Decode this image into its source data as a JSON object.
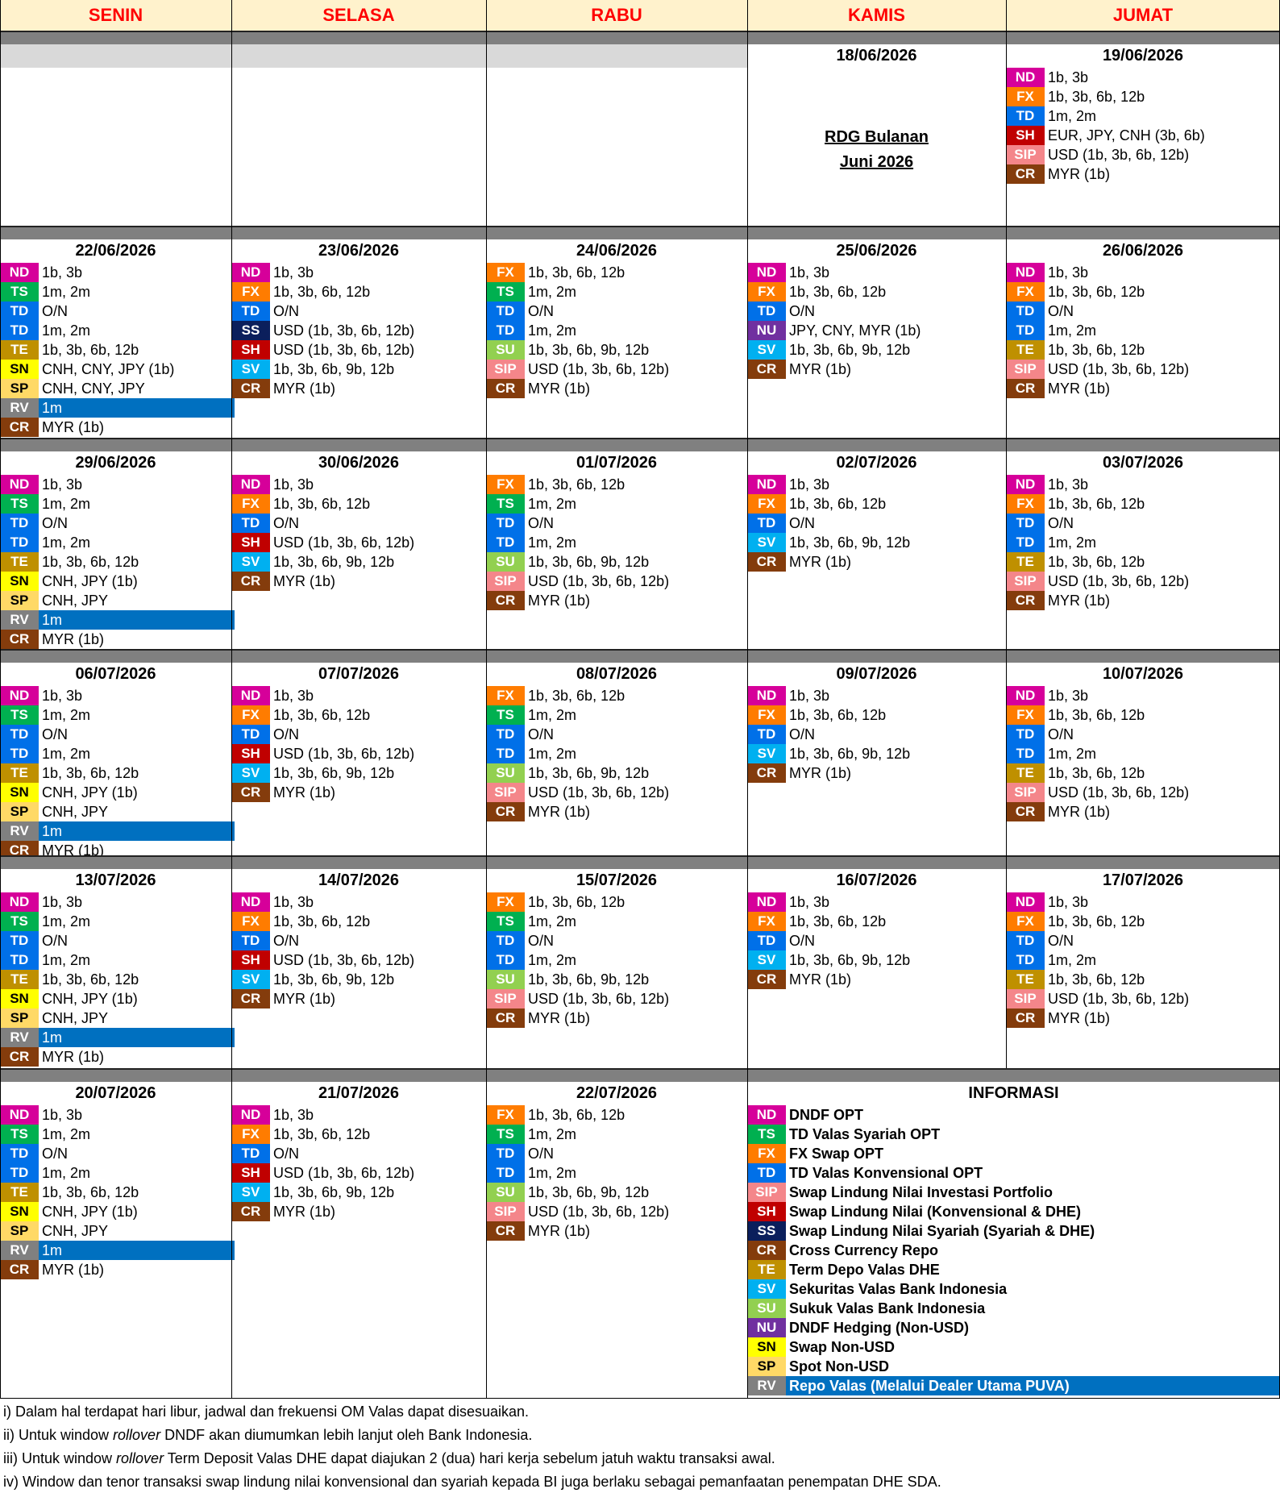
{
  "header": {
    "days": [
      "SENIN",
      "SELASA",
      "RABU",
      "KAMIS",
      "JUMAT"
    ]
  },
  "weeks": [
    {
      "cells": [
        null,
        null,
        null,
        {
          "date": "18/06/2026",
          "note": [
            "RDG Bulanan",
            "Juni 2026"
          ]
        },
        {
          "date": "19/06/2026",
          "items": [
            [
              "ND",
              "1b, 3b"
            ],
            [
              "FX",
              "1b, 3b, 6b, 12b"
            ],
            [
              "TD",
              "1m, 2m"
            ],
            [
              "SH",
              "EUR, JPY, CNH (3b, 6b)"
            ],
            [
              "SIP",
              "USD (1b, 3b, 6b, 12b)"
            ],
            [
              "CR",
              "MYR (1b)"
            ]
          ]
        }
      ]
    },
    {
      "cells": [
        {
          "date": "22/06/2026",
          "items": [
            [
              "ND",
              "1b, 3b"
            ],
            [
              "TS",
              "1m, 2m"
            ],
            [
              "TD",
              "O/N"
            ],
            [
              "TD",
              "1m, 2m"
            ],
            [
              "TE",
              "1b, 3b, 6b, 12b"
            ],
            [
              "SN",
              "CNH, CNY, JPY (1b)"
            ],
            [
              "SP",
              "CNH, CNY, JPY"
            ],
            [
              "RV",
              "1m"
            ],
            [
              "CR",
              "MYR (1b)"
            ]
          ]
        },
        {
          "date": "23/06/2026",
          "items": [
            [
              "ND",
              "1b, 3b"
            ],
            [
              "FX",
              "1b, 3b, 6b, 12b"
            ],
            [
              "TD",
              "O/N"
            ],
            [
              "SS",
              "USD (1b, 3b, 6b, 12b)"
            ],
            [
              "SH",
              "USD (1b, 3b, 6b, 12b)"
            ],
            [
              "SV",
              "1b, 3b, 6b, 9b, 12b"
            ],
            [
              "CR",
              "MYR (1b)"
            ]
          ]
        },
        {
          "date": "24/06/2026",
          "items": [
            [
              "FX",
              "1b, 3b, 6b, 12b"
            ],
            [
              "TS",
              "1m, 2m"
            ],
            [
              "TD",
              "O/N"
            ],
            [
              "TD",
              "1m, 2m"
            ],
            [
              "SU",
              "1b, 3b, 6b, 9b, 12b"
            ],
            [
              "SIP",
              "USD (1b, 3b, 6b, 12b)"
            ],
            [
              "CR",
              "MYR (1b)"
            ]
          ]
        },
        {
          "date": "25/06/2026",
          "items": [
            [
              "ND",
              "1b, 3b"
            ],
            [
              "FX",
              "1b, 3b, 6b, 12b"
            ],
            [
              "TD",
              "O/N"
            ],
            [
              "NU",
              "JPY, CNY, MYR (1b)"
            ],
            [
              "SV",
              "1b, 3b, 6b, 9b, 12b"
            ],
            [
              "CR",
              "MYR (1b)"
            ]
          ]
        },
        {
          "date": "26/06/2026",
          "items": [
            [
              "ND",
              "1b, 3b"
            ],
            [
              "FX",
              "1b, 3b, 6b, 12b"
            ],
            [
              "TD",
              "O/N"
            ],
            [
              "TD",
              "1m, 2m"
            ],
            [
              "TE",
              "1b, 3b, 6b, 12b"
            ],
            [
              "SIP",
              "USD (1b, 3b, 6b, 12b)"
            ],
            [
              "CR",
              "MYR (1b)"
            ]
          ]
        }
      ]
    },
    {
      "cells": [
        {
          "date": "29/06/2026",
          "items": [
            [
              "ND",
              "1b, 3b"
            ],
            [
              "TS",
              "1m, 2m"
            ],
            [
              "TD",
              "O/N"
            ],
            [
              "TD",
              "1m, 2m"
            ],
            [
              "TE",
              "1b, 3b, 6b, 12b"
            ],
            [
              "SN",
              "CNH, JPY (1b)"
            ],
            [
              "SP",
              "CNH, JPY"
            ],
            [
              "RV",
              "1m"
            ],
            [
              "CR",
              "MYR (1b)"
            ]
          ]
        },
        {
          "date": "30/06/2026",
          "items": [
            [
              "ND",
              "1b, 3b"
            ],
            [
              "FX",
              "1b, 3b, 6b, 12b"
            ],
            [
              "TD",
              "O/N"
            ],
            [
              "SH",
              "USD (1b, 3b, 6b, 12b)"
            ],
            [
              "SV",
              "1b, 3b, 6b, 9b, 12b"
            ],
            [
              "CR",
              "MYR (1b)"
            ]
          ]
        },
        {
          "date": "01/07/2026",
          "items": [
            [
              "FX",
              "1b, 3b, 6b, 12b"
            ],
            [
              "TS",
              "1m, 2m"
            ],
            [
              "TD",
              "O/N"
            ],
            [
              "TD",
              "1m, 2m"
            ],
            [
              "SU",
              "1b, 3b, 6b, 9b, 12b"
            ],
            [
              "SIP",
              "USD (1b, 3b, 6b, 12b)"
            ],
            [
              "CR",
              "MYR (1b)"
            ]
          ]
        },
        {
          "date": "02/07/2026",
          "items": [
            [
              "ND",
              "1b, 3b"
            ],
            [
              "FX",
              "1b, 3b, 6b, 12b"
            ],
            [
              "TD",
              "O/N"
            ],
            [
              "SV",
              "1b, 3b, 6b, 9b, 12b"
            ],
            [
              "CR",
              "MYR (1b)"
            ]
          ]
        },
        {
          "date": "03/07/2026",
          "items": [
            [
              "ND",
              "1b, 3b"
            ],
            [
              "FX",
              "1b, 3b, 6b, 12b"
            ],
            [
              "TD",
              "O/N"
            ],
            [
              "TD",
              "1m, 2m"
            ],
            [
              "TE",
              "1b, 3b, 6b, 12b"
            ],
            [
              "SIP",
              "USD (1b, 3b, 6b, 12b)"
            ],
            [
              "CR",
              "MYR (1b)"
            ]
          ]
        }
      ]
    },
    {
      "cells": [
        {
          "date": "06/07/2026",
          "items": [
            [
              "ND",
              "1b, 3b"
            ],
            [
              "TS",
              "1m, 2m"
            ],
            [
              "TD",
              "O/N"
            ],
            [
              "TD",
              "1m, 2m"
            ],
            [
              "TE",
              "1b, 3b, 6b, 12b"
            ],
            [
              "SN",
              "CNH, JPY (1b)"
            ],
            [
              "SP",
              "CNH, JPY"
            ],
            [
              "RV",
              "1m"
            ],
            [
              "CR",
              "MYR (1b)"
            ]
          ]
        },
        {
          "date": "07/07/2026",
          "items": [
            [
              "ND",
              "1b, 3b"
            ],
            [
              "FX",
              "1b, 3b, 6b, 12b"
            ],
            [
              "TD",
              "O/N"
            ],
            [
              "SH",
              "USD (1b, 3b, 6b, 12b)"
            ],
            [
              "SV",
              "1b, 3b, 6b, 9b, 12b"
            ],
            [
              "CR",
              "MYR (1b)"
            ]
          ]
        },
        {
          "date": "08/07/2026",
          "items": [
            [
              "FX",
              "1b, 3b, 6b, 12b"
            ],
            [
              "TS",
              "1m, 2m"
            ],
            [
              "TD",
              "O/N"
            ],
            [
              "TD",
              "1m, 2m"
            ],
            [
              "SU",
              "1b, 3b, 6b, 9b, 12b"
            ],
            [
              "SIP",
              "USD (1b, 3b, 6b, 12b)"
            ],
            [
              "CR",
              "MYR (1b)"
            ]
          ]
        },
        {
          "date": "09/07/2026",
          "items": [
            [
              "ND",
              "1b, 3b"
            ],
            [
              "FX",
              "1b, 3b, 6b, 12b"
            ],
            [
              "TD",
              "O/N"
            ],
            [
              "SV",
              "1b, 3b, 6b, 9b, 12b"
            ],
            [
              "CR",
              "MYR (1b)"
            ]
          ]
        },
        {
          "date": "10/07/2026",
          "items": [
            [
              "ND",
              "1b, 3b"
            ],
            [
              "FX",
              "1b, 3b, 6b, 12b"
            ],
            [
              "TD",
              "O/N"
            ],
            [
              "TD",
              "1m, 2m"
            ],
            [
              "TE",
              "1b, 3b, 6b, 12b"
            ],
            [
              "SIP",
              "USD (1b, 3b, 6b, 12b)"
            ],
            [
              "CR",
              "MYR (1b)"
            ]
          ]
        }
      ]
    },
    {
      "cells": [
        {
          "date": "13/07/2026",
          "items": [
            [
              "ND",
              "1b, 3b"
            ],
            [
              "TS",
              "1m, 2m"
            ],
            [
              "TD",
              "O/N"
            ],
            [
              "TD",
              "1m, 2m"
            ],
            [
              "TE",
              "1b, 3b, 6b, 12b"
            ],
            [
              "SN",
              "CNH, JPY (1b)"
            ],
            [
              "SP",
              "CNH, JPY"
            ],
            [
              "RV",
              "1m"
            ],
            [
              "CR",
              "MYR (1b)"
            ]
          ]
        },
        {
          "date": "14/07/2026",
          "items": [
            [
              "ND",
              "1b, 3b"
            ],
            [
              "FX",
              "1b, 3b, 6b, 12b"
            ],
            [
              "TD",
              "O/N"
            ],
            [
              "SH",
              "USD (1b, 3b, 6b, 12b)"
            ],
            [
              "SV",
              "1b, 3b, 6b, 9b, 12b"
            ],
            [
              "CR",
              "MYR (1b)"
            ]
          ]
        },
        {
          "date": "15/07/2026",
          "items": [
            [
              "FX",
              "1b, 3b, 6b, 12b"
            ],
            [
              "TS",
              "1m, 2m"
            ],
            [
              "TD",
              "O/N"
            ],
            [
              "TD",
              "1m, 2m"
            ],
            [
              "SU",
              "1b, 3b, 6b, 9b, 12b"
            ],
            [
              "SIP",
              "USD (1b, 3b, 6b, 12b)"
            ],
            [
              "CR",
              "MYR (1b)"
            ]
          ]
        },
        {
          "date": "16/07/2026",
          "items": [
            [
              "ND",
              "1b, 3b"
            ],
            [
              "FX",
              "1b, 3b, 6b, 12b"
            ],
            [
              "TD",
              "O/N"
            ],
            [
              "SV",
              "1b, 3b, 6b, 9b, 12b"
            ],
            [
              "CR",
              "MYR (1b)"
            ]
          ]
        },
        {
          "date": "17/07/2026",
          "items": [
            [
              "ND",
              "1b, 3b"
            ],
            [
              "FX",
              "1b, 3b, 6b, 12b"
            ],
            [
              "TD",
              "O/N"
            ],
            [
              "TD",
              "1m, 2m"
            ],
            [
              "TE",
              "1b, 3b, 6b, 12b"
            ],
            [
              "SIP",
              "USD (1b, 3b, 6b, 12b)"
            ],
            [
              "CR",
              "MYR (1b)"
            ]
          ]
        }
      ]
    },
    {
      "cells": [
        {
          "date": "20/07/2026",
          "items": [
            [
              "ND",
              "1b, 3b"
            ],
            [
              "TS",
              "1m, 2m"
            ],
            [
              "TD",
              "O/N"
            ],
            [
              "TD",
              "1m, 2m"
            ],
            [
              "TE",
              "1b, 3b, 6b, 12b"
            ],
            [
              "SN",
              "CNH, JPY (1b)"
            ],
            [
              "SP",
              "CNH, JPY"
            ],
            [
              "RV",
              "1m"
            ],
            [
              "CR",
              "MYR (1b)"
            ]
          ]
        },
        {
          "date": "21/07/2026",
          "items": [
            [
              "ND",
              "1b, 3b"
            ],
            [
              "FX",
              "1b, 3b, 6b, 12b"
            ],
            [
              "TD",
              "O/N"
            ],
            [
              "SH",
              "USD (1b, 3b, 6b, 12b)"
            ],
            [
              "SV",
              "1b, 3b, 6b, 9b, 12b"
            ],
            [
              "CR",
              "MYR (1b)"
            ]
          ]
        },
        {
          "date": "22/07/2026",
          "items": [
            [
              "FX",
              "1b, 3b, 6b, 12b"
            ],
            [
              "TS",
              "1m, 2m"
            ],
            [
              "TD",
              "O/N"
            ],
            [
              "TD",
              "1m, 2m"
            ],
            [
              "SU",
              "1b, 3b, 6b, 9b, 12b"
            ],
            [
              "SIP",
              "USD (1b, 3b, 6b, 12b)"
            ],
            [
              "CR",
              "MYR (1b)"
            ]
          ]
        }
      ]
    }
  ],
  "info": {
    "title": "INFORMASI",
    "items": [
      [
        "ND",
        "DNDF OPT"
      ],
      [
        "TS",
        "TD Valas Syariah OPT"
      ],
      [
        "FX",
        "FX Swap OPT"
      ],
      [
        "TD",
        "TD Valas Konvensional OPT"
      ],
      [
        "SIP",
        "Swap Lindung Nilai Investasi Portfolio"
      ],
      [
        "SH",
        "Swap Lindung Nilai (Konvensional & DHE)"
      ],
      [
        "SS",
        "Swap Lindung Nilai Syariah (Syariah & DHE)"
      ],
      [
        "CR",
        "Cross Currency Repo"
      ],
      [
        "TE",
        "Term Depo Valas DHE"
      ],
      [
        "SV",
        "Sekuritas Valas Bank Indonesia"
      ],
      [
        "SU",
        "Sukuk Valas Bank Indonesia"
      ],
      [
        "NU",
        "DNDF Hedging (Non-USD)"
      ],
      [
        "SN",
        "Swap Non-USD"
      ],
      [
        "SP",
        "Spot Non-USD"
      ],
      [
        "RV",
        "Repo Valas (Melalui Dealer Utama PUVA)"
      ]
    ]
  },
  "notes": [
    [
      "i) Dalam hal terdapat hari libur, jadwal dan frekuensi OM Valas dapat disesuaikan."
    ],
    [
      "ii) Untuk window ",
      "rollover",
      " DNDF akan diumumkan lebih lanjut oleh Bank Indonesia."
    ],
    [
      "iii) Untuk window ",
      "rollover",
      " Term Deposit Valas DHE dapat diajukan 2 (dua) hari kerja sebelum jatuh waktu transaksi awal."
    ],
    [
      "iv) Window dan tenor transaksi swap lindung nilai konvensional dan syariah kepada BI juga berlaku sebagai pemanfaatan penempatan DHE SDA."
    ]
  ]
}
